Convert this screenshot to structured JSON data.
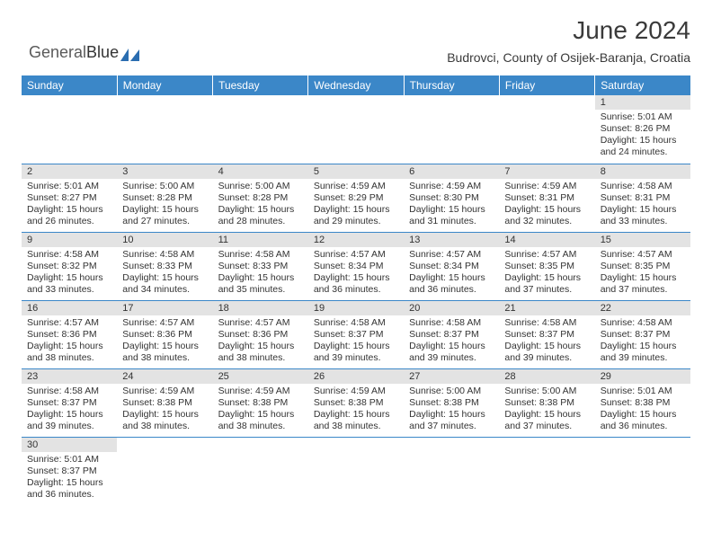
{
  "brand": {
    "text1": "General",
    "text2": "Blue",
    "logo_color": "#2a6db0"
  },
  "title": "June 2024",
  "location": "Budrovci, County of Osijek-Baranja, Croatia",
  "colors": {
    "header_bg": "#3b87c8",
    "header_text": "#ffffff",
    "daynum_bg": "#e3e3e3",
    "rule": "#3b87c8",
    "body_text": "#333333"
  },
  "day_headers": [
    "Sunday",
    "Monday",
    "Tuesday",
    "Wednesday",
    "Thursday",
    "Friday",
    "Saturday"
  ],
  "weeks": [
    [
      null,
      null,
      null,
      null,
      null,
      null,
      {
        "n": "1",
        "sunrise": "5:01 AM",
        "sunset": "8:26 PM",
        "daylight": "15 hours and 24 minutes."
      }
    ],
    [
      {
        "n": "2",
        "sunrise": "5:01 AM",
        "sunset": "8:27 PM",
        "daylight": "15 hours and 26 minutes."
      },
      {
        "n": "3",
        "sunrise": "5:00 AM",
        "sunset": "8:28 PM",
        "daylight": "15 hours and 27 minutes."
      },
      {
        "n": "4",
        "sunrise": "5:00 AM",
        "sunset": "8:28 PM",
        "daylight": "15 hours and 28 minutes."
      },
      {
        "n": "5",
        "sunrise": "4:59 AM",
        "sunset": "8:29 PM",
        "daylight": "15 hours and 29 minutes."
      },
      {
        "n": "6",
        "sunrise": "4:59 AM",
        "sunset": "8:30 PM",
        "daylight": "15 hours and 31 minutes."
      },
      {
        "n": "7",
        "sunrise": "4:59 AM",
        "sunset": "8:31 PM",
        "daylight": "15 hours and 32 minutes."
      },
      {
        "n": "8",
        "sunrise": "4:58 AM",
        "sunset": "8:31 PM",
        "daylight": "15 hours and 33 minutes."
      }
    ],
    [
      {
        "n": "9",
        "sunrise": "4:58 AM",
        "sunset": "8:32 PM",
        "daylight": "15 hours and 33 minutes."
      },
      {
        "n": "10",
        "sunrise": "4:58 AM",
        "sunset": "8:33 PM",
        "daylight": "15 hours and 34 minutes."
      },
      {
        "n": "11",
        "sunrise": "4:58 AM",
        "sunset": "8:33 PM",
        "daylight": "15 hours and 35 minutes."
      },
      {
        "n": "12",
        "sunrise": "4:57 AM",
        "sunset": "8:34 PM",
        "daylight": "15 hours and 36 minutes."
      },
      {
        "n": "13",
        "sunrise": "4:57 AM",
        "sunset": "8:34 PM",
        "daylight": "15 hours and 36 minutes."
      },
      {
        "n": "14",
        "sunrise": "4:57 AM",
        "sunset": "8:35 PM",
        "daylight": "15 hours and 37 minutes."
      },
      {
        "n": "15",
        "sunrise": "4:57 AM",
        "sunset": "8:35 PM",
        "daylight": "15 hours and 37 minutes."
      }
    ],
    [
      {
        "n": "16",
        "sunrise": "4:57 AM",
        "sunset": "8:36 PM",
        "daylight": "15 hours and 38 minutes."
      },
      {
        "n": "17",
        "sunrise": "4:57 AM",
        "sunset": "8:36 PM",
        "daylight": "15 hours and 38 minutes."
      },
      {
        "n": "18",
        "sunrise": "4:57 AM",
        "sunset": "8:36 PM",
        "daylight": "15 hours and 38 minutes."
      },
      {
        "n": "19",
        "sunrise": "4:58 AM",
        "sunset": "8:37 PM",
        "daylight": "15 hours and 39 minutes."
      },
      {
        "n": "20",
        "sunrise": "4:58 AM",
        "sunset": "8:37 PM",
        "daylight": "15 hours and 39 minutes."
      },
      {
        "n": "21",
        "sunrise": "4:58 AM",
        "sunset": "8:37 PM",
        "daylight": "15 hours and 39 minutes."
      },
      {
        "n": "22",
        "sunrise": "4:58 AM",
        "sunset": "8:37 PM",
        "daylight": "15 hours and 39 minutes."
      }
    ],
    [
      {
        "n": "23",
        "sunrise": "4:58 AM",
        "sunset": "8:37 PM",
        "daylight": "15 hours and 39 minutes."
      },
      {
        "n": "24",
        "sunrise": "4:59 AM",
        "sunset": "8:38 PM",
        "daylight": "15 hours and 38 minutes."
      },
      {
        "n": "25",
        "sunrise": "4:59 AM",
        "sunset": "8:38 PM",
        "daylight": "15 hours and 38 minutes."
      },
      {
        "n": "26",
        "sunrise": "4:59 AM",
        "sunset": "8:38 PM",
        "daylight": "15 hours and 38 minutes."
      },
      {
        "n": "27",
        "sunrise": "5:00 AM",
        "sunset": "8:38 PM",
        "daylight": "15 hours and 37 minutes."
      },
      {
        "n": "28",
        "sunrise": "5:00 AM",
        "sunset": "8:38 PM",
        "daylight": "15 hours and 37 minutes."
      },
      {
        "n": "29",
        "sunrise": "5:01 AM",
        "sunset": "8:38 PM",
        "daylight": "15 hours and 36 minutes."
      }
    ],
    [
      {
        "n": "30",
        "sunrise": "5:01 AM",
        "sunset": "8:37 PM",
        "daylight": "15 hours and 36 minutes."
      },
      null,
      null,
      null,
      null,
      null,
      null
    ]
  ],
  "labels": {
    "sunrise": "Sunrise: ",
    "sunset": "Sunset: ",
    "daylight": "Daylight: "
  }
}
